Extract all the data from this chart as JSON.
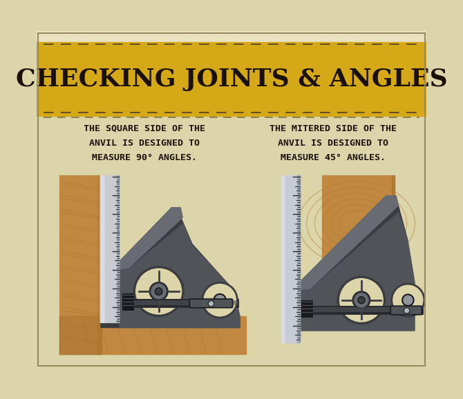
{
  "bg_color": "#dcd5aa",
  "title_bg": "#d4a817",
  "title_text": "CHECKING JOINTS & ANGLES",
  "title_color": "#1a1005",
  "dash_color": "#5a4820",
  "text_color": "#1a1005",
  "wood_base": "#c08840",
  "wood_mid": "#b07830",
  "wood_dark": "#906020",
  "wood_light_hi": "#d09850",
  "ruler_light": "#c8ccd0",
  "ruler_mid": "#a0a8b0",
  "ruler_dark": "#808890",
  "anvil_darkest": "#2a2c30",
  "anvil_dark": "#3a3c40",
  "anvil_mid": "#505458",
  "anvil_light": "#686c72",
  "cream": "#dcd5aa",
  "black": "#181a1e",
  "label1": "THE SQUARE SIDE OF THE\nANVIL IS DESIGNED TO\nMEASURE 90° ANGLES.",
  "label2": "THE MITERED SIDE OF THE\nANVIL IS DESIGNED TO\nMEASURE 45° ANGLES."
}
